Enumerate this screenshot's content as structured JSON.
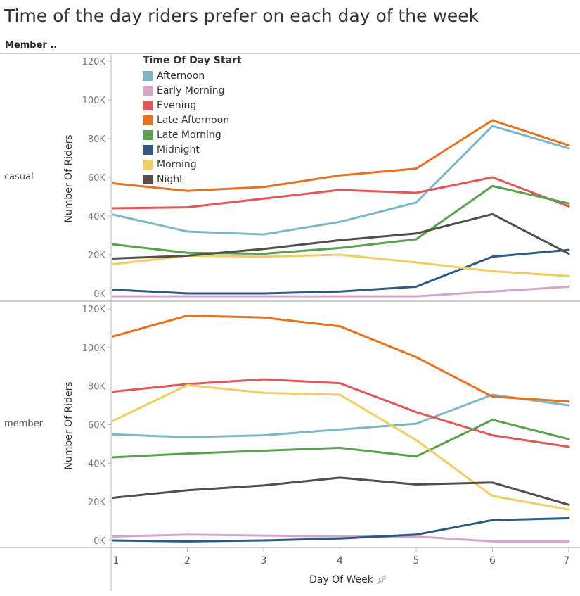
{
  "title": "Time of the day riders prefer on each day of the week",
  "header_label": "Member ..",
  "x_axis_label": "Day Of Week",
  "chart_data": {
    "type": "line",
    "x": [
      1,
      2,
      3,
      4,
      5,
      6,
      7
    ],
    "xlabel": "Day Of Week",
    "legend_title": "Time Of Day Start",
    "legend_placement": "top-left",
    "grid": false,
    "series_meta": [
      {
        "name": "Afternoon",
        "color": "#7ab8c6"
      },
      {
        "name": "Early Morning",
        "color": "#d5a6c9"
      },
      {
        "name": "Evening",
        "color": "#e15759"
      },
      {
        "name": "Late Afternoon",
        "color": "#e8711d"
      },
      {
        "name": "Late Morning",
        "color": "#59a14f"
      },
      {
        "name": "Midnight",
        "color": "#2c5a84"
      },
      {
        "name": "Morning",
        "color": "#f1cd62"
      },
      {
        "name": "Night",
        "color": "#544d4a"
      }
    ],
    "panels": [
      {
        "row_label": "casual",
        "ylabel": "Number Of Riders",
        "ylim": [
          0,
          120000
        ],
        "yticks": [
          0,
          20000,
          40000,
          60000,
          80000,
          100000,
          120000
        ],
        "ytick_labels": [
          "0K",
          "20K",
          "40K",
          "60K",
          "80K",
          "100K",
          "120K"
        ],
        "series": [
          {
            "name": "Afternoon",
            "values": [
              41000,
              32000,
              30500,
              37000,
              47000,
              86500,
              75000
            ]
          },
          {
            "name": "Early Morning",
            "values": [
              -1500,
              -1500,
              -1500,
              -1500,
              -1500,
              1000,
              3500
            ]
          },
          {
            "name": "Evening",
            "values": [
              44000,
              44500,
              49000,
              53500,
              52000,
              60000,
              45000
            ]
          },
          {
            "name": "Late Afternoon",
            "values": [
              57000,
              53000,
              55000,
              61000,
              64500,
              89500,
              76500
            ]
          },
          {
            "name": "Late Morning",
            "values": [
              25500,
              21000,
              20500,
              23500,
              28000,
              55500,
              46500
            ]
          },
          {
            "name": "Midnight",
            "values": [
              2000,
              0,
              0,
              1000,
              3500,
              19000,
              22500
            ]
          },
          {
            "name": "Morning",
            "values": [
              15000,
              19500,
              19000,
              20000,
              16000,
              11500,
              9000
            ]
          },
          {
            "name": "Night",
            "values": [
              18000,
              19500,
              23000,
              27500,
              31000,
              41000,
              20500
            ]
          }
        ]
      },
      {
        "row_label": "member",
        "ylabel": "Number Of Riders",
        "ylim": [
          0,
          120000
        ],
        "yticks": [
          0,
          20000,
          40000,
          60000,
          80000,
          100000,
          120000
        ],
        "ytick_labels": [
          "0K",
          "20K",
          "40K",
          "60K",
          "80K",
          "100K",
          "120K"
        ],
        "series": [
          {
            "name": "Afternoon",
            "values": [
              55000,
              53500,
              54500,
              57500,
              60500,
              75500,
              70000
            ]
          },
          {
            "name": "Early Morning",
            "values": [
              2000,
              3000,
              2500,
              2000,
              2000,
              -500,
              -500
            ]
          },
          {
            "name": "Evening",
            "values": [
              77000,
              81000,
              83500,
              81500,
              66500,
              54500,
              48500
            ]
          },
          {
            "name": "Late Afternoon",
            "values": [
              105500,
              116500,
              115500,
              111000,
              95000,
              74500,
              72000
            ]
          },
          {
            "name": "Late Morning",
            "values": [
              43000,
              45000,
              46500,
              48000,
              43500,
              62500,
              52500
            ]
          },
          {
            "name": "Midnight",
            "values": [
              0,
              -500,
              0,
              1000,
              3000,
              10500,
              11500
            ]
          },
          {
            "name": "Morning",
            "values": [
              61500,
              80500,
              76500,
              75500,
              52000,
              23000,
              16000
            ]
          },
          {
            "name": "Night",
            "values": [
              22000,
              26000,
              28500,
              32500,
              29000,
              30000,
              18500
            ]
          }
        ]
      }
    ]
  }
}
